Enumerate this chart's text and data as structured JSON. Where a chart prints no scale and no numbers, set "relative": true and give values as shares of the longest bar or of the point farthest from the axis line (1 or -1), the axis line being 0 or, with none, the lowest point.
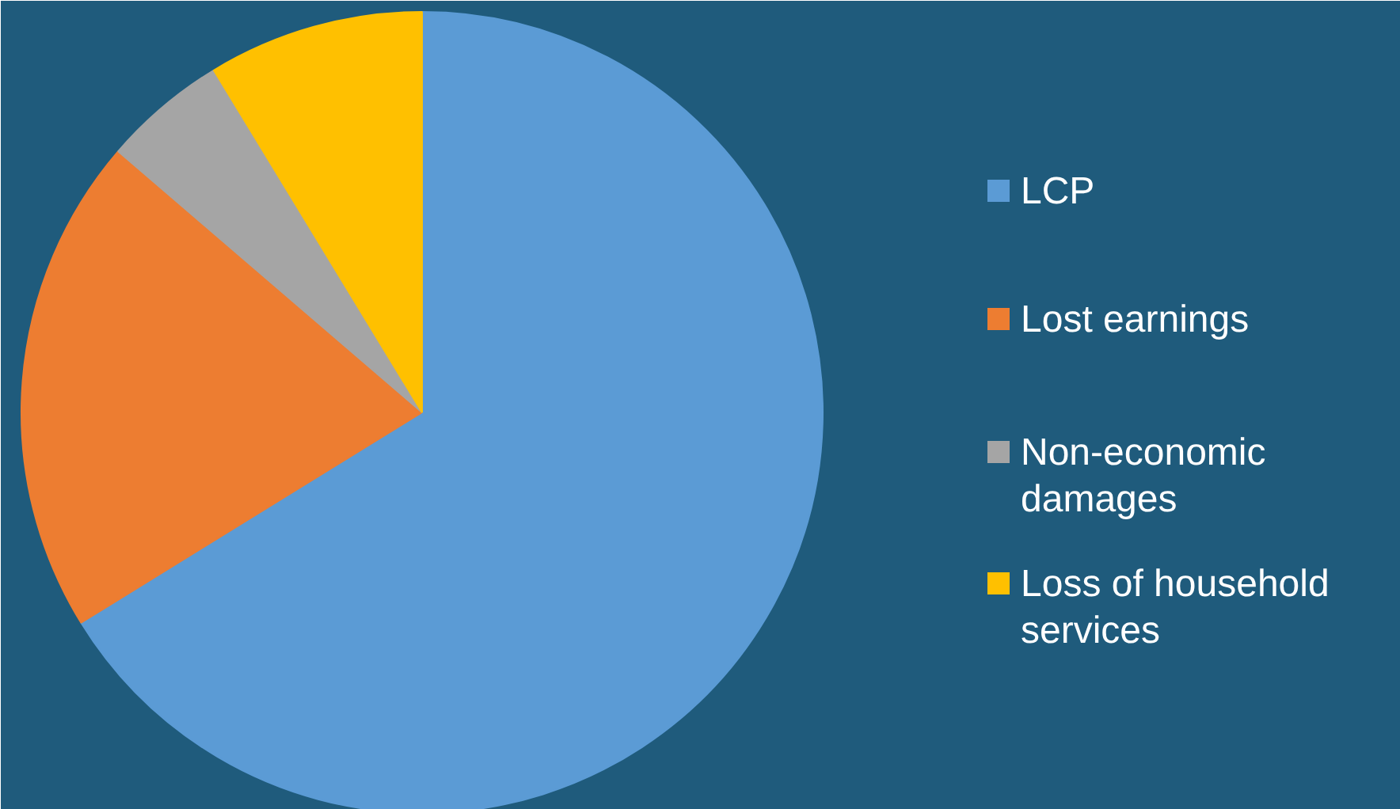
{
  "chart_data": {
    "type": "pie",
    "relative": true,
    "categories": [
      "LCP",
      "Lost earnings",
      "Non-economic damages",
      "Loss of household services"
    ],
    "values": [
      66.2,
      20.1,
      5.0,
      8.7
    ],
    "colors": [
      "#5b9bd5",
      "#ed7d31",
      "#a5a5a5",
      "#ffc000"
    ],
    "legend": "right"
  }
}
